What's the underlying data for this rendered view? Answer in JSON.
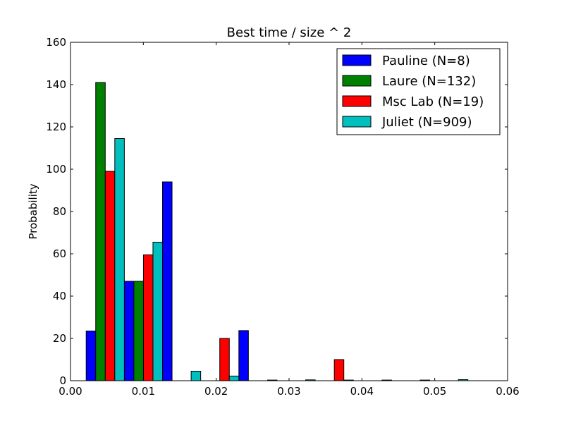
{
  "chart_data": {
    "type": "bar",
    "title": "Best time / size ^ 2",
    "xlabel": "",
    "ylabel": "Probability",
    "xlim": [
      0.0,
      0.06
    ],
    "ylim": [
      0,
      160
    ],
    "xticks": [
      "0.00",
      "0.01",
      "0.02",
      "0.03",
      "0.04",
      "0.05",
      "0.06"
    ],
    "yticks": [
      "0",
      "20",
      "40",
      "60",
      "80",
      "100",
      "120",
      "140",
      "160"
    ],
    "bin_width": 0.00524,
    "grid": false,
    "legend_position": "top-right",
    "x": [
      0.00215,
      0.00739,
      0.01263,
      0.01787,
      0.02311,
      0.02835,
      0.03359,
      0.03883,
      0.04407,
      0.04931
    ],
    "series": [
      {
        "name": "Pauline (N=8)",
        "color": "#0000ff",
        "values": [
          23.5,
          47,
          94,
          0,
          23.7,
          0,
          0,
          0,
          0,
          0
        ]
      },
      {
        "name": "Laure (N=132)",
        "color": "#008000",
        "values": [
          141,
          47,
          0,
          0,
          0,
          0,
          0,
          0,
          0,
          0
        ]
      },
      {
        "name": "Msc Lab (N=19)",
        "color": "#ff0000",
        "values": [
          99,
          59.5,
          0,
          20,
          0,
          0,
          10,
          0,
          0,
          0
        ]
      },
      {
        "name": "Juliet (N=909)",
        "color": "#00bfbf",
        "values": [
          114.5,
          65.5,
          4.5,
          2.2,
          0.3,
          0.4,
          0.3,
          0.3,
          0.3,
          0.5
        ]
      }
    ]
  }
}
